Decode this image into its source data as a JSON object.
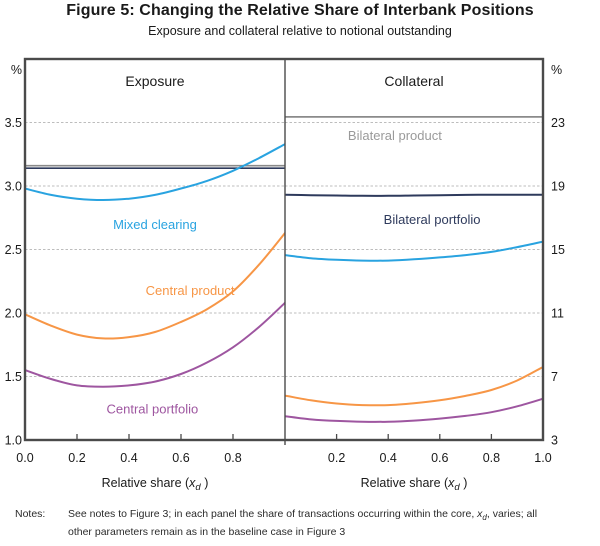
{
  "figure": {
    "title": "Figure 5: Changing the Relative Share of Interbank Positions",
    "subtitle": "Exposure and collateral relative to notional outstanding"
  },
  "colors": {
    "blue": "#29A3E0",
    "orange": "#F79646",
    "purple": "#9E56A0",
    "navy": "#2E3A5C",
    "gray": "#8A8A8A",
    "label_gray": "#9A9A9A",
    "border": "#4A4A4A",
    "grid": "#BDBDBD",
    "text": "#1A1A1A"
  },
  "chart_data": [
    {
      "type": "line",
      "title": "Exposure",
      "unit": "%",
      "axis_side": "left",
      "xlim": [
        0,
        1
      ],
      "ylim": [
        1.0,
        4.0
      ],
      "grid": true,
      "gridlines": [
        1.5,
        2.0,
        2.5,
        3.0,
        3.5
      ],
      "yticks": [
        {
          "v": 1.0,
          "label": "1.0"
        },
        {
          "v": 1.5,
          "label": "1.5"
        },
        {
          "v": 2.0,
          "label": "2.0"
        },
        {
          "v": 2.5,
          "label": "2.5"
        },
        {
          "v": 3.0,
          "label": "3.0"
        },
        {
          "v": 3.5,
          "label": "3.5"
        }
      ],
      "xticks": [
        {
          "v": 0.0,
          "label": "0.0"
        },
        {
          "v": 0.2,
          "label": "0.2"
        },
        {
          "v": 0.4,
          "label": "0.4"
        },
        {
          "v": 0.6,
          "label": "0.6"
        },
        {
          "v": 0.8,
          "label": "0.8"
        }
      ],
      "xlabel": {
        "pre": "Relative share (",
        "var": "x",
        "sub": "d",
        "post": " )"
      },
      "x": [
        0,
        0.1,
        0.2,
        0.3,
        0.4,
        0.5,
        0.6,
        0.7,
        0.8,
        0.9,
        1.0
      ],
      "series": [
        {
          "name": "Bilateral product",
          "color_key": "gray",
          "width": 1.7,
          "values": [
            3.16,
            3.16,
            3.16,
            3.16,
            3.16,
            3.16,
            3.16,
            3.16,
            3.16,
            3.16,
            3.16
          ]
        },
        {
          "name": "Bilateral portfolio",
          "color_key": "navy",
          "width": 1.7,
          "values": [
            3.14,
            3.14,
            3.14,
            3.14,
            3.14,
            3.14,
            3.14,
            3.14,
            3.14,
            3.14,
            3.14
          ]
        },
        {
          "name": "Mixed clearing",
          "color_key": "blue",
          "width": 2,
          "values": [
            2.98,
            2.93,
            2.9,
            2.89,
            2.9,
            2.93,
            2.98,
            3.04,
            3.12,
            3.22,
            3.33
          ]
        },
        {
          "name": "Central product",
          "color_key": "orange",
          "width": 2,
          "values": [
            1.99,
            1.9,
            1.83,
            1.8,
            1.81,
            1.85,
            1.93,
            2.03,
            2.17,
            2.38,
            2.63
          ]
        },
        {
          "name": "Central portfolio",
          "color_key": "purple",
          "width": 2,
          "values": [
            1.55,
            1.48,
            1.43,
            1.42,
            1.43,
            1.46,
            1.52,
            1.61,
            1.73,
            1.89,
            2.08
          ]
        }
      ],
      "labels": [
        {
          "text": "Mixed clearing",
          "color_key": "blue",
          "x": 0.5,
          "y": 2.66
        },
        {
          "text": "Central product",
          "color_key": "orange",
          "x": 0.635,
          "y": 2.14
        },
        {
          "text": "Central portfolio",
          "color_key": "purple",
          "x": 0.49,
          "y": 1.21
        }
      ]
    },
    {
      "type": "line",
      "title": "Collateral",
      "unit": "%",
      "axis_side": "right",
      "xlim": [
        0,
        1
      ],
      "ylim": [
        3,
        27
      ],
      "grid": true,
      "gridlines": [
        7,
        11,
        15,
        19,
        23
      ],
      "yticks": [
        {
          "v": 3,
          "label": "3"
        },
        {
          "v": 7,
          "label": "7"
        },
        {
          "v": 11,
          "label": "11"
        },
        {
          "v": 15,
          "label": "15"
        },
        {
          "v": 19,
          "label": "19"
        },
        {
          "v": 23,
          "label": "23"
        }
      ],
      "xticks": [
        {
          "v": 0.2,
          "label": "0.2"
        },
        {
          "v": 0.4,
          "label": "0.4"
        },
        {
          "v": 0.6,
          "label": "0.6"
        },
        {
          "v": 0.8,
          "label": "0.8"
        },
        {
          "v": 1.0,
          "label": "1.0"
        }
      ],
      "xlabel": {
        "pre": "Relative share (",
        "var": "x",
        "sub": "d",
        "post": " )"
      },
      "x": [
        0,
        0.1,
        0.2,
        0.3,
        0.4,
        0.5,
        0.6,
        0.7,
        0.8,
        0.9,
        1.0
      ],
      "series": [
        {
          "name": "Bilateral product",
          "color_key": "gray",
          "width": 1.7,
          "values": [
            23.35,
            23.35,
            23.35,
            23.35,
            23.35,
            23.35,
            23.35,
            23.35,
            23.35,
            23.35,
            23.35
          ]
        },
        {
          "name": "Bilateral portfolio",
          "color_key": "navy",
          "width": 2,
          "values": [
            18.45,
            18.42,
            18.4,
            18.38,
            18.38,
            18.4,
            18.42,
            18.44,
            18.45,
            18.45,
            18.45
          ]
        },
        {
          "name": "Mixed clearing",
          "color_key": "blue",
          "width": 2,
          "values": [
            14.65,
            14.45,
            14.35,
            14.3,
            14.3,
            14.38,
            14.5,
            14.65,
            14.85,
            15.15,
            15.5
          ]
        },
        {
          "name": "Central product",
          "color_key": "orange",
          "width": 2,
          "values": [
            5.8,
            5.5,
            5.3,
            5.2,
            5.2,
            5.32,
            5.5,
            5.78,
            6.15,
            6.75,
            7.6
          ]
        },
        {
          "name": "Central portfolio",
          "color_key": "purple",
          "width": 2,
          "values": [
            4.5,
            4.3,
            4.2,
            4.15,
            4.15,
            4.22,
            4.35,
            4.52,
            4.75,
            5.12,
            5.6
          ]
        }
      ],
      "labels": [
        {
          "text": "Bilateral product",
          "color_key": "label_gray",
          "x": 0.426,
          "y": 21.9
        },
        {
          "text": "Bilateral portfolio",
          "color_key": "navy",
          "x": 0.57,
          "y": 16.6
        }
      ]
    }
  ],
  "notes": {
    "label": "Notes:",
    "line1_pre": "See notes to Figure 3; in each panel the share of transactions occurring within the core, ",
    "var": "x",
    "sub": "d",
    "line1_post": ", varies; all",
    "line2": "other parameters remain as in the baseline case in Figure 3"
  }
}
